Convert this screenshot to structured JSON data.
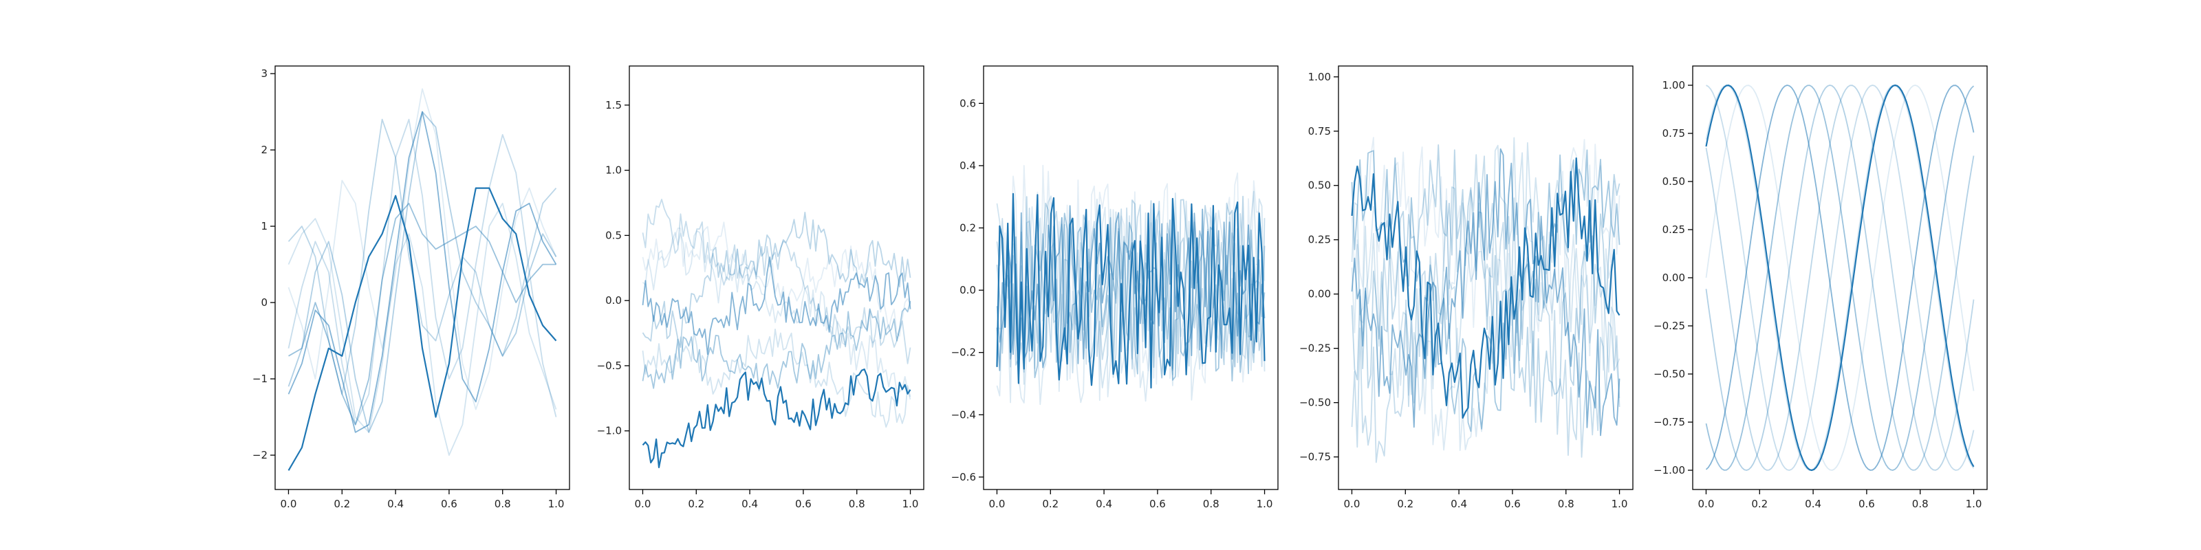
{
  "figure": {
    "background": "#ffffff",
    "line_color": "#1f77b4"
  },
  "chart_data": [
    {
      "type": "line",
      "title": "",
      "xlabel": "",
      "ylabel": "",
      "xlim": [
        -0.05,
        1.05
      ],
      "ylim": [
        -2.45,
        3.1
      ],
      "xticks": [
        "0.0",
        "0.2",
        "0.4",
        "0.6",
        "0.8",
        "1.0"
      ],
      "yticks": [
        "−2",
        "−1",
        "0",
        "1",
        "2",
        "3"
      ],
      "series": [
        {
          "alpha": 0.15,
          "x": [
            0.0,
            0.05,
            0.1,
            0.15,
            0.2,
            0.25,
            0.3,
            0.35,
            0.4,
            0.45,
            0.5,
            0.55,
            0.6,
            0.65,
            0.7,
            0.75,
            0.8,
            0.85,
            0.9,
            0.95,
            1.0
          ],
          "y": [
            0.2,
            -0.3,
            -1.0,
            0.2,
            1.6,
            1.3,
            0.2,
            -0.6,
            0.4,
            1.8,
            2.8,
            2.2,
            0.6,
            -0.8,
            -1.4,
            -0.9,
            0.2,
            1.1,
            1.5,
            1.0,
            0.6
          ]
        },
        {
          "alpha": 0.2,
          "x": [
            0.0,
            0.05,
            0.1,
            0.15,
            0.2,
            0.25,
            0.3,
            0.35,
            0.4,
            0.45,
            0.5,
            0.55,
            0.6,
            0.65,
            0.7,
            0.75,
            0.8,
            0.85,
            0.9,
            0.95,
            1.0
          ],
          "y": [
            0.5,
            0.9,
            1.1,
            0.7,
            -0.4,
            -1.5,
            -1.7,
            -0.8,
            0.5,
            0.9,
            0.2,
            -1.3,
            -2.0,
            -1.6,
            -0.3,
            1.0,
            1.3,
            0.6,
            -0.4,
            -0.9,
            -1.4
          ]
        },
        {
          "alpha": 0.25,
          "x": [
            0.0,
            0.05,
            0.1,
            0.15,
            0.2,
            0.25,
            0.3,
            0.35,
            0.4,
            0.45,
            0.5,
            0.55,
            0.6,
            0.65,
            0.7,
            0.75,
            0.8,
            0.85,
            0.9,
            0.95,
            1.0
          ],
          "y": [
            -0.6,
            0.2,
            0.8,
            0.4,
            -0.8,
            -1.6,
            -1.2,
            0.3,
            1.9,
            2.4,
            1.4,
            -0.2,
            -1.0,
            -0.6,
            0.5,
            1.5,
            2.2,
            1.7,
            0.4,
            -0.8,
            -1.5
          ]
        },
        {
          "alpha": 0.3,
          "x": [
            0.0,
            0.05,
            0.1,
            0.15,
            0.2,
            0.25,
            0.3,
            0.35,
            0.4,
            0.45,
            0.5,
            0.55,
            0.6,
            0.65,
            0.7,
            0.75,
            0.8,
            0.85,
            0.9,
            0.95,
            1.0
          ],
          "y": [
            0.8,
            1.0,
            0.6,
            -0.5,
            -1.2,
            -0.3,
            1.2,
            2.4,
            1.9,
            0.6,
            -0.3,
            -0.5,
            0.1,
            0.6,
            0.4,
            -0.3,
            -0.7,
            -0.2,
            0.6,
            1.3,
            1.5
          ]
        },
        {
          "alpha": 0.35,
          "x": [
            0.0,
            0.05,
            0.1,
            0.15,
            0.2,
            0.25,
            0.3,
            0.35,
            0.4,
            0.45,
            0.5,
            0.55,
            0.6,
            0.65,
            0.7,
            0.75,
            0.8,
            0.85,
            0.9,
            0.95,
            1.0
          ],
          "y": [
            -1.1,
            -0.6,
            0.4,
            0.8,
            0.1,
            -1.0,
            -1.7,
            -1.3,
            0.1,
            1.4,
            2.5,
            2.3,
            1.3,
            0.4,
            0.0,
            -0.3,
            -0.7,
            -0.4,
            0.4,
            0.9,
            0.6
          ]
        },
        {
          "alpha": 0.45,
          "x": [
            0.0,
            0.05,
            0.1,
            0.15,
            0.2,
            0.25,
            0.3,
            0.35,
            0.4,
            0.45,
            0.5,
            0.55,
            0.6,
            0.65,
            0.7,
            0.75,
            0.8,
            0.85,
            0.9,
            0.95,
            1.0
          ],
          "y": [
            -0.7,
            -0.6,
            0.0,
            -0.5,
            -1.2,
            -1.6,
            -1.0,
            0.3,
            1.1,
            1.3,
            0.9,
            0.7,
            0.8,
            0.9,
            1.0,
            0.8,
            0.4,
            0.0,
            0.3,
            0.5,
            0.5
          ]
        },
        {
          "alpha": 0.55,
          "x": [
            0.0,
            0.05,
            0.1,
            0.15,
            0.2,
            0.25,
            0.3,
            0.35,
            0.4,
            0.45,
            0.5,
            0.55,
            0.6,
            0.65,
            0.7,
            0.75,
            0.8,
            0.85,
            0.9,
            0.95,
            1.0
          ],
          "y": [
            -1.2,
            -0.8,
            -0.1,
            -0.3,
            -1.0,
            -1.7,
            -1.6,
            -0.7,
            0.6,
            1.9,
            2.5,
            1.7,
            0.2,
            -1.0,
            -1.3,
            -0.6,
            0.4,
            1.2,
            1.3,
            0.8,
            0.5
          ]
        },
        {
          "alpha": 1.0,
          "x": [
            0.0,
            0.05,
            0.1,
            0.15,
            0.2,
            0.25,
            0.3,
            0.35,
            0.4,
            0.45,
            0.5,
            0.55,
            0.6,
            0.65,
            0.7,
            0.75,
            0.8,
            0.85,
            0.9,
            0.95,
            1.0
          ],
          "y": [
            -2.2,
            -1.9,
            -1.2,
            -0.6,
            -0.7,
            0.0,
            0.6,
            0.9,
            1.4,
            0.8,
            -0.6,
            -1.5,
            -0.8,
            0.6,
            1.5,
            1.5,
            1.1,
            0.9,
            0.1,
            -0.3,
            -0.5
          ]
        }
      ]
    },
    {
      "type": "line",
      "title": "",
      "xlabel": "",
      "ylabel": "",
      "xlim": [
        -0.05,
        1.05
      ],
      "ylim": [
        -1.45,
        1.8
      ],
      "xticks": [
        "0.0",
        "0.2",
        "0.4",
        "0.6",
        "0.8",
        "1.0"
      ],
      "yticks": [
        "−1.0",
        "−0.5",
        "0.0",
        "0.5",
        "1.0",
        "1.5"
      ],
      "generator": {
        "kind": "random-walk",
        "points": 100,
        "series": [
          {
            "alpha": 0.12,
            "start": 0.3,
            "amp": 0.6,
            "drift": 0.0,
            "seed": 11
          },
          {
            "alpha": 0.16,
            "start": 0.2,
            "amp": 0.55,
            "drift": -0.5,
            "seed": 12
          },
          {
            "alpha": 0.2,
            "start": -0.5,
            "amp": 0.5,
            "drift": 0.6,
            "seed": 13
          },
          {
            "alpha": 0.25,
            "start": 0.5,
            "amp": 0.55,
            "drift": -0.9,
            "seed": 14
          },
          {
            "alpha": 0.3,
            "start": -0.2,
            "amp": 0.5,
            "drift": 0.3,
            "seed": 15
          },
          {
            "alpha": 0.4,
            "start": -0.5,
            "amp": 0.45,
            "drift": 0.4,
            "seed": 16
          },
          {
            "alpha": 0.55,
            "start": 0.0,
            "amp": 0.5,
            "drift": -0.2,
            "seed": 17
          },
          {
            "alpha": 1.0,
            "start": -1.25,
            "amp": 0.45,
            "drift": 1.0,
            "seed": 18
          }
        ]
      }
    },
    {
      "type": "line",
      "title": "",
      "xlabel": "",
      "ylabel": "",
      "xlim": [
        -0.05,
        1.05
      ],
      "ylim": [
        -0.64,
        0.72
      ],
      "xticks": [
        "0.0",
        "0.2",
        "0.4",
        "0.6",
        "0.8",
        "1.0"
      ],
      "yticks": [
        "−0.6",
        "−0.4",
        "−0.2",
        "0.0",
        "0.2",
        "0.4",
        "0.6"
      ],
      "generator": {
        "kind": "noise",
        "points": 100,
        "series": [
          {
            "alpha": 0.12,
            "center": 0.05,
            "amp": 0.22,
            "seed": 21
          },
          {
            "alpha": 0.16,
            "center": -0.05,
            "amp": 0.2,
            "seed": 22
          },
          {
            "alpha": 0.2,
            "center": 0.0,
            "amp": 0.2,
            "seed": 23
          },
          {
            "alpha": 0.25,
            "center": 0.0,
            "amp": 0.18,
            "seed": 24
          },
          {
            "alpha": 0.3,
            "center": 0.02,
            "amp": 0.18,
            "seed": 25
          },
          {
            "alpha": 0.4,
            "center": -0.02,
            "amp": 0.17,
            "seed": 26
          },
          {
            "alpha": 0.55,
            "center": 0.0,
            "amp": 0.17,
            "seed": 27
          },
          {
            "alpha": 1.0,
            "center": 0.0,
            "amp": 0.2,
            "seed": 28
          }
        ]
      }
    },
    {
      "type": "line",
      "title": "",
      "xlabel": "",
      "ylabel": "",
      "xlim": [
        -0.05,
        1.05
      ],
      "ylim": [
        -0.9,
        1.05
      ],
      "xticks": [
        "0.0",
        "0.2",
        "0.4",
        "0.6",
        "0.8",
        "1.0"
      ],
      "yticks": [
        "−0.75",
        "−0.50",
        "−0.25",
        "0.00",
        "0.25",
        "0.50",
        "0.75",
        "1.00"
      ],
      "generator": {
        "kind": "noisy-wave",
        "points": 100,
        "series": [
          {
            "alpha": 0.12,
            "base": 0.4,
            "wave": 0.25,
            "phase": 0.3,
            "amp": 0.22,
            "seed": 31
          },
          {
            "alpha": 0.16,
            "base": -0.3,
            "wave": 0.3,
            "phase": 1.5,
            "amp": 0.22,
            "seed": 32
          },
          {
            "alpha": 0.2,
            "base": 0.2,
            "wave": 0.4,
            "phase": 2.7,
            "amp": 0.2,
            "seed": 33
          },
          {
            "alpha": 0.25,
            "base": -0.1,
            "wave": 0.45,
            "phase": 4.0,
            "amp": 0.2,
            "seed": 34
          },
          {
            "alpha": 0.3,
            "base": 0.1,
            "wave": 0.4,
            "phase": 5.2,
            "amp": 0.18,
            "seed": 35
          },
          {
            "alpha": 0.4,
            "base": 0.0,
            "wave": 0.45,
            "phase": 0.9,
            "amp": 0.18,
            "seed": 36
          },
          {
            "alpha": 0.55,
            "base": 0.0,
            "wave": 0.4,
            "phase": 3.3,
            "amp": 0.18,
            "seed": 37
          },
          {
            "alpha": 1.0,
            "base": 0.0,
            "wave": 0.4,
            "phase": 1.2,
            "amp": 0.16,
            "seed": 38
          }
        ]
      }
    },
    {
      "type": "line",
      "title": "",
      "xlabel": "",
      "ylabel": "",
      "xlim": [
        -0.05,
        1.05
      ],
      "ylim": [
        -1.1,
        1.1
      ],
      "xticks": [
        "0.0",
        "0.2",
        "0.4",
        "0.6",
        "0.8",
        "1.0"
      ],
      "yticks": [
        "−1.00",
        "−0.75",
        "−0.50",
        "−0.25",
        "0.00",
        "0.25",
        "0.50",
        "0.75",
        "1.00"
      ],
      "generator": {
        "kind": "sine",
        "points": 120,
        "frequency_cycles": 1.6,
        "series": [
          {
            "alpha": 0.15,
            "phase": 0.0
          },
          {
            "alpha": 0.2,
            "phase": 0.8
          },
          {
            "alpha": 0.25,
            "phase": 1.6
          },
          {
            "alpha": 0.3,
            "phase": 2.4
          },
          {
            "alpha": 0.35,
            "phase": 3.2
          },
          {
            "alpha": 0.45,
            "phase": 4.0
          },
          {
            "alpha": 0.55,
            "phase": 4.8
          },
          {
            "alpha": 1.0,
            "phase": 0.75
          }
        ]
      }
    }
  ]
}
